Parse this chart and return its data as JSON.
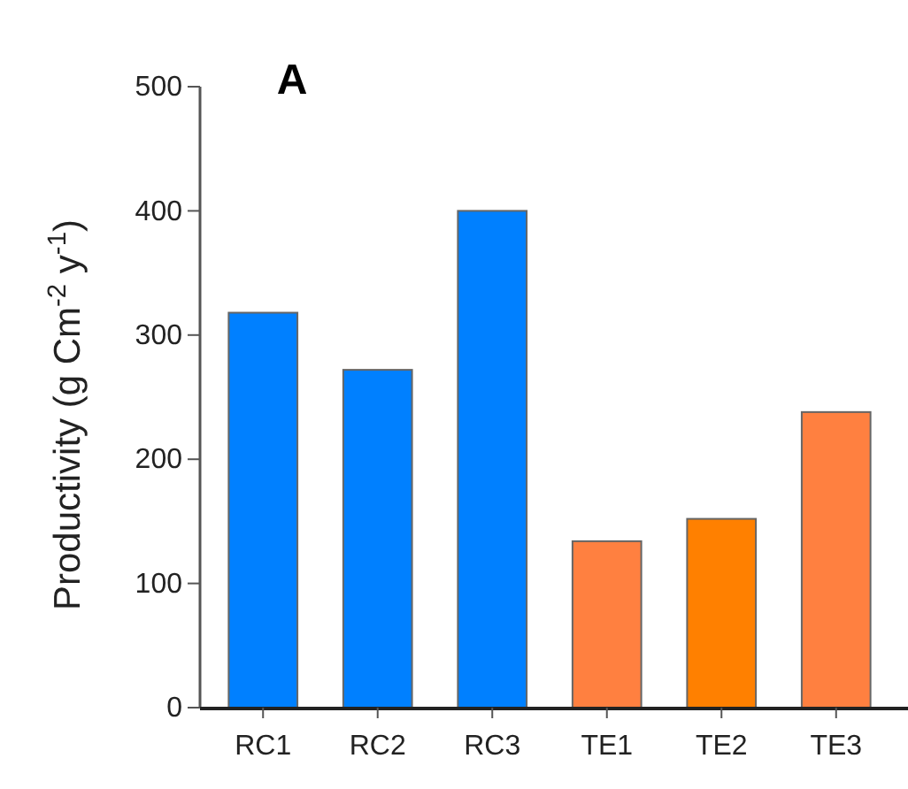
{
  "chart_data": {
    "type": "bar",
    "title": "A",
    "ylabel": "Productivity (g Cm$^{-2}$ y$^{-1}$)",
    "categories": [
      "RC1",
      "RC2",
      "RC3",
      "TE1",
      "TE2",
      "TE3"
    ],
    "values": [
      318,
      272,
      400,
      134,
      152,
      238
    ],
    "colors": [
      "#0080ff",
      "#0080ff",
      "#0080ff",
      "#ff8040",
      "#ff8000",
      "#ff8040"
    ],
    "ylim": [
      0,
      500
    ],
    "yticks": [
      0,
      100,
      200,
      300,
      400,
      500
    ],
    "grid": false
  }
}
